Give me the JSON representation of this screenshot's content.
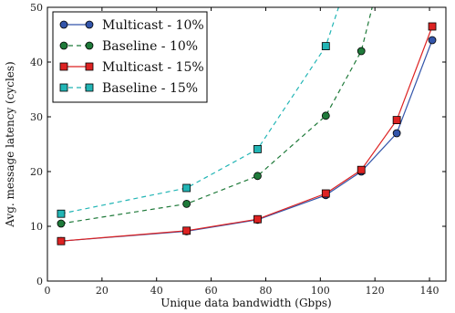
{
  "chart_data": {
    "type": "line",
    "title": "",
    "xlabel": "Unique data bandwidth (Gbps)",
    "ylabel": "Avg. message latency (cycles)",
    "xlim": [
      0,
      146
    ],
    "ylim": [
      0,
      50
    ],
    "xticks": [
      0,
      20,
      40,
      60,
      80,
      100,
      120,
      140
    ],
    "yticks": [
      0,
      10,
      20,
      30,
      40,
      50
    ],
    "grid": false,
    "legend_position": "top-left",
    "series": [
      {
        "name": "Multicast - 10%",
        "color": "#3355aa",
        "marker": "circle",
        "line_style": "solid",
        "x": [
          5,
          51,
          77,
          102,
          115,
          128,
          141
        ],
        "y": [
          7.3,
          9.1,
          11.2,
          15.7,
          20.0,
          27.0,
          44.0
        ]
      },
      {
        "name": "Baseline - 10%",
        "color": "#1f7a3a",
        "marker": "circle",
        "line_style": "dashed",
        "x": [
          5,
          51,
          77,
          102,
          115,
          120
        ],
        "y": [
          10.5,
          14.1,
          19.2,
          30.2,
          42.0,
          52.0
        ]
      },
      {
        "name": "Multicast - 15%",
        "color": "#dd2222",
        "marker": "square",
        "line_style": "solid",
        "x": [
          5,
          51,
          77,
          102,
          115,
          128,
          141
        ],
        "y": [
          7.3,
          9.2,
          11.3,
          16.0,
          20.3,
          29.4,
          46.5
        ]
      },
      {
        "name": "Baseline - 15%",
        "color": "#22b5b5",
        "marker": "square",
        "line_style": "dashed",
        "x": [
          5,
          51,
          77,
          102,
          108
        ],
        "y": [
          12.3,
          17.0,
          24.1,
          42.9,
          52.0
        ]
      }
    ]
  }
}
